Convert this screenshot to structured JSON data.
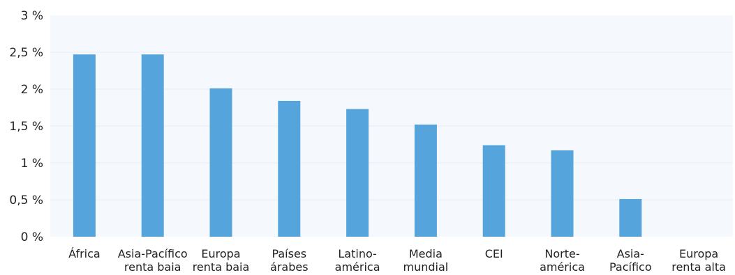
{
  "chart_data": {
    "type": "bar",
    "categories": [
      "África",
      "Asia-Pacífico renta baia",
      "Europa renta baia",
      "Países árabes",
      "Latino- américa",
      "Media mundial",
      "CEI",
      "Norte- américa",
      "Asia- Pacífico",
      "Europa renta alta"
    ],
    "category_lines": [
      [
        "África"
      ],
      [
        "Asia-Pacífico",
        "renta baia"
      ],
      [
        "Europa",
        "renta baia"
      ],
      [
        "Países",
        "árabes"
      ],
      [
        "Latino-",
        "américa"
      ],
      [
        "Media",
        "mundial"
      ],
      [
        "CEI"
      ],
      [
        "Norte-",
        "américa"
      ],
      [
        "Asia-",
        "Pacífico"
      ],
      [
        "Europa",
        "renta alta"
      ]
    ],
    "values": [
      2.47,
      2.47,
      2.01,
      1.84,
      1.73,
      1.52,
      1.24,
      1.17,
      0.51,
      0
    ],
    "ylim": [
      0,
      3
    ],
    "yticks": [
      0,
      0.5,
      1,
      1.5,
      2,
      2.5,
      3
    ],
    "ytick_labels": [
      "0 %",
      "0,5 %",
      "1 %",
      "1,5 %",
      "2 %",
      "2,5 %",
      "3 %"
    ],
    "title": "",
    "xlabel": "",
    "ylabel": "",
    "grid": true,
    "bar_color": "#55a5dc",
    "plot_background": "#f5f8fd",
    "grid_color": "#e6edf7"
  }
}
